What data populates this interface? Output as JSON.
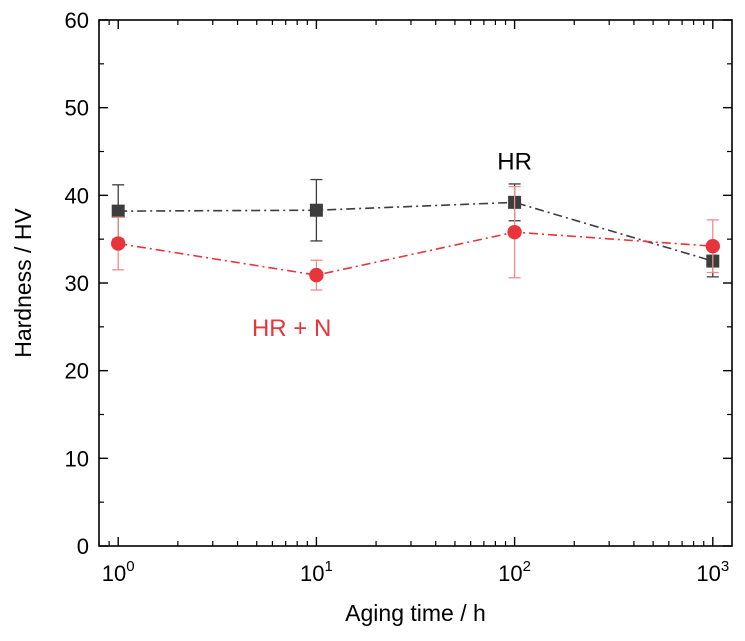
{
  "chart_data": {
    "type": "scatter",
    "xlabel": "Aging time / h",
    "ylabel": "Hardness / HV",
    "xscale": "log",
    "xlim": [
      0.8,
      1250
    ],
    "ylim": [
      0,
      60
    ],
    "grid": false,
    "x_ticks": [
      {
        "value": 1,
        "base": "10",
        "exp": "0"
      },
      {
        "value": 10,
        "base": "10",
        "exp": "1"
      },
      {
        "value": 100,
        "base": "10",
        "exp": "2"
      },
      {
        "value": 1000,
        "base": "10",
        "exp": "3"
      }
    ],
    "y_ticks": [
      {
        "value": 0,
        "label": "0"
      },
      {
        "value": 10,
        "label": "10"
      },
      {
        "value": 20,
        "label": "20"
      },
      {
        "value": 30,
        "label": "30"
      },
      {
        "value": 40,
        "label": "40"
      },
      {
        "value": 50,
        "label": "50"
      },
      {
        "value": 60,
        "label": "60"
      }
    ],
    "series": [
      {
        "name": "HR",
        "color": "#3d3d3d",
        "marker": "square",
        "line_style": "dash-dot",
        "x": [
          1,
          10,
          100,
          1000
        ],
        "values": [
          38.2,
          38.3,
          39.2,
          32.5
        ],
        "err_low": [
          3.2,
          3.5,
          2.1,
          1.8
        ],
        "err_high": [
          3.0,
          3.5,
          2.1,
          1.8
        ]
      },
      {
        "name": "HR + N",
        "color": "#e8343a",
        "marker": "circle",
        "line_style": "dash-dot",
        "x": [
          1,
          10,
          100,
          1000
        ],
        "values": [
          34.5,
          30.9,
          35.8,
          34.2
        ],
        "err_low": [
          3.0,
          1.7,
          5.2,
          3.0
        ],
        "err_high": [
          3.0,
          1.7,
          5.2,
          3.0
        ]
      }
    ],
    "annotations": [
      {
        "text": "HR",
        "series": "HR",
        "x": 100,
        "y": 44,
        "color": "#000000"
      },
      {
        "text": "HR + N",
        "series": "HR + N",
        "x": 7.5,
        "y": 25,
        "color": "#e8343a"
      }
    ]
  }
}
